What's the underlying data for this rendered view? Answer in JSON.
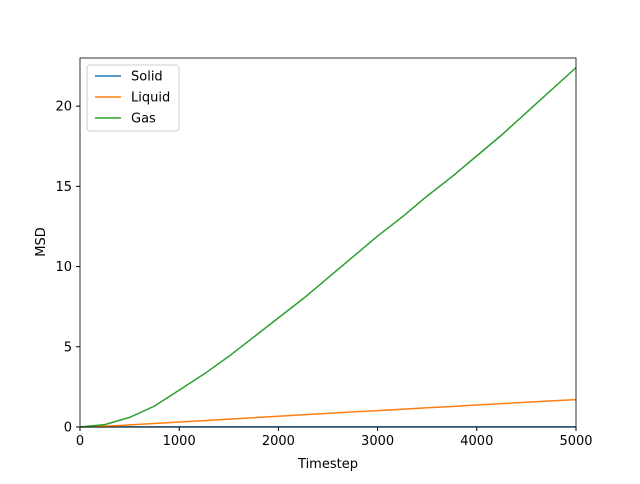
{
  "chart_data": {
    "type": "line",
    "xlabel": "Timestep",
    "ylabel": "MSD",
    "x": [
      0,
      250,
      500,
      750,
      1000,
      1250,
      1500,
      1750,
      2000,
      2250,
      2500,
      2750,
      3000,
      3250,
      3500,
      3750,
      4000,
      4250,
      4500,
      4750,
      5000
    ],
    "series": [
      {
        "name": "Solid",
        "color": "#1f77b4",
        "values": [
          0,
          0.01,
          0.01,
          0.01,
          0.01,
          0.01,
          0.01,
          0.01,
          0.01,
          0.01,
          0.01,
          0.01,
          0.01,
          0.01,
          0.01,
          0.01,
          0.01,
          0.01,
          0.01,
          0.01,
          0.01
        ]
      },
      {
        "name": "Liquid",
        "color": "#ff7f0e",
        "values": [
          0,
          0.05,
          0.13,
          0.22,
          0.31,
          0.4,
          0.49,
          0.58,
          0.67,
          0.76,
          0.85,
          0.94,
          1.02,
          1.11,
          1.2,
          1.28,
          1.37,
          1.46,
          1.54,
          1.63,
          1.71
        ]
      },
      {
        "name": "Gas",
        "color": "#2ca02c",
        "values": [
          0,
          0.15,
          0.6,
          1.3,
          2.3,
          3.3,
          4.4,
          5.6,
          6.8,
          8.0,
          9.3,
          10.6,
          11.9,
          13.1,
          14.4,
          15.6,
          16.9,
          18.2,
          19.6,
          21.0,
          22.4
        ]
      }
    ],
    "xlim": [
      0,
      5000
    ],
    "xticks": [
      0,
      1000,
      2000,
      3000,
      4000,
      5000
    ],
    "ylim": [
      0,
      23
    ],
    "yticks": [
      0,
      5,
      10,
      15,
      20
    ],
    "legend": "upper-left"
  }
}
